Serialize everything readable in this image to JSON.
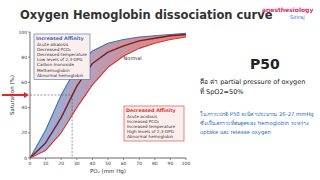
{
  "slide": {
    "title": "Oxygen Hemoglobin dissociation curve",
    "logo": [
      "anesthesiology",
      "Siriraj"
    ],
    "panel": {
      "heading": "P50",
      "definition": [
        "คือ ค่า partial pressure of oxygen",
        "ที่ SpO2=50%"
      ],
      "note": [
        "ในภาวะปกติ P50 จะมีค่าประมาณ 26-27 mmHg",
        "ซึ่งเป็นสภาวะที่สมดุลของ hemoglobin ระหว่าง",
        "uptake และ release oxygen"
      ]
    }
  },
  "chart_data": {
    "type": "line",
    "x_label": "PO₂ (mm Hg)",
    "y_label": "Saturation (%)",
    "x": [
      0,
      10,
      20,
      30,
      40,
      50,
      60,
      70,
      80,
      90,
      100
    ],
    "series": [
      {
        "name": "Increased Affinity",
        "color": "#3f6fb5",
        "values": [
          0,
          22,
          50,
          72,
          85,
          91,
          94,
          96,
          97,
          98,
          99
        ],
        "factors": [
          "Acute alkalosis",
          "Decreased PCO₂",
          "Decreased temperature",
          "Low levels of 2,3-DPG",
          "Carbon monoxide",
          "Methemoglobin",
          "Abnormal hemoglobin"
        ]
      },
      {
        "name": "Normal",
        "color": "#7a1f1f",
        "values": [
          0,
          12,
          32,
          57,
          75,
          84,
          89,
          93,
          95,
          97,
          98
        ]
      },
      {
        "name": "Decreased Affinity",
        "color": "#d9342b",
        "values": [
          0,
          6,
          20,
          40,
          58,
          72,
          81,
          87,
          91,
          94,
          96
        ],
        "factors": [
          "Acute acidosis",
          "Increased PCO₂",
          "Increased temperature",
          "High levels of 2,3-DPG",
          "Abnormal hemoglobin"
        ]
      }
    ],
    "reference": {
      "x": 27,
      "y": 50
    },
    "xlim": [
      0,
      100
    ],
    "xticks": [
      0,
      10,
      20,
      30,
      40,
      50,
      60,
      70,
      80,
      90,
      100
    ],
    "ylim": [
      0,
      100
    ],
    "yticks": [
      0,
      20,
      40,
      60,
      80,
      100
    ],
    "grid": false
  }
}
